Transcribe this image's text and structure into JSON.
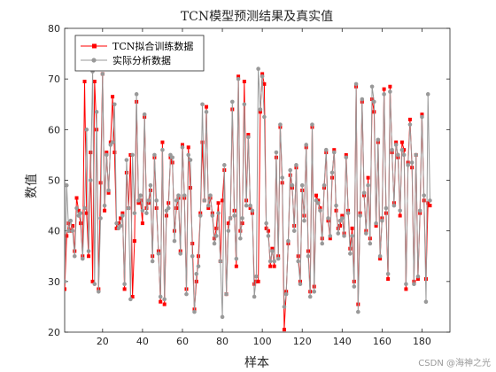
{
  "chart_data": {
    "type": "line",
    "title": "TCN模型预测结果及真实值",
    "xlabel": "样本",
    "ylabel": "数值",
    "xlim": [
      1,
      194
    ],
    "ylim": [
      20,
      80
    ],
    "xticks": [
      20,
      40,
      60,
      80,
      100,
      120,
      140,
      160,
      180
    ],
    "yticks": [
      20,
      30,
      40,
      50,
      60,
      70,
      80
    ],
    "grid": false,
    "legend_position": "top-left",
    "series": [
      {
        "name": "TCN拟合训练数据",
        "color": "#ff0000",
        "marker": "square",
        "values": [
          28.5,
          39.0,
          41.5,
          40.0,
          41.0,
          36.0,
          46.5,
          44.0,
          41.5,
          35.0,
          69.5,
          43.5,
          35.0,
          55.5,
          30.0,
          69.5,
          60.0,
          28.5,
          49.5,
          71.0,
          44.0,
          55.5,
          47.5,
          57.5,
          66.5,
          55.5,
          40.5,
          41.5,
          42.5,
          43.5,
          28.5,
          51.5,
          44.5,
          55.0,
          27.0,
          38.0,
          65.5,
          45.5,
          46.0,
          41.5,
          62.5,
          44.5,
          45.5,
          48.0,
          35.0,
          54.5,
          44.5,
          36.0,
          26.0,
          57.5,
          25.5,
          43.0,
          45.5,
          54.5,
          53.5,
          40.0,
          44.5,
          46.5,
          36.0,
          57.0,
          46.5,
          28.5,
          56.5,
          48.5,
          37.5,
          24.5,
          30.0,
          35.0,
          43.5,
          57.5,
          46.0,
          64.5,
          44.5,
          46.5,
          43.5,
          38.5,
          40.5,
          45.5,
          34.0,
          46.0,
          52.0,
          27.5,
          41.5,
          42.5,
          64.0,
          44.0,
          33.0,
          70.5,
          40.0,
          41.5,
          69.5,
          46.0,
          59.0,
          44.5,
          43.5,
          29.5,
          30.0,
          30.0,
          63.5,
          71.0,
          69.0,
          40.5,
          40.0,
          33.0,
          36.5,
          33.0,
          54.5,
          35.0,
          60.5,
          49.5,
          20.5,
          28.0,
          37.5,
          51.0,
          48.5,
          41.0,
          52.5,
          35.0,
          30.0,
          48.0,
          43.0,
          56.5,
          36.0,
          28.0,
          60.5,
          29.0,
          47.0,
          46.0,
          44.5,
          38.5,
          48.5,
          55.5,
          42.0,
          38.5,
          50.5,
          56.0,
          44.0,
          40.5,
          41.0,
          43.0,
          39.5,
          55.0,
          44.0,
          36.5,
          40.5,
          30.0,
          68.5,
          25.5,
          43.5,
          65.5,
          47.0,
          40.0,
          50.5,
          38.5,
          66.0,
          63.5,
          41.0,
          57.5,
          34.5,
          42.5,
          68.0,
          43.5,
          30.5,
          68.5,
          55.5,
          45.5,
          57.5,
          54.5,
          43.0,
          57.5,
          56.0,
          28.5,
          53.5,
          62.0,
          52.5,
          30.0,
          55.0,
          30.5,
          43.5,
          63.0,
          46.0,
          30.5,
          45.5,
          45.0
        ],
        "x_start": 1
      },
      {
        "name": "实际分析数据",
        "color": "#999999",
        "marker": "circle",
        "values": [
          30.0,
          49.0,
          40.0,
          42.0,
          40.0,
          35.0,
          44.5,
          43.0,
          43.5,
          34.5,
          44.5,
          60.0,
          36.0,
          50.0,
          71.5,
          29.5,
          63.5,
          28.0,
          42.5,
          71.0,
          45.0,
          55.0,
          48.0,
          57.0,
          57.5,
          65.0,
          41.5,
          40.5,
          41.0,
          43.0,
          29.5,
          54.0,
          44.5,
          26.5,
          55.0,
          43.5,
          67.0,
          46.0,
          47.0,
          44.0,
          63.0,
          43.5,
          46.0,
          49.0,
          34.0,
          55.0,
          46.0,
          35.5,
          27.0,
          56.0,
          26.5,
          44.0,
          44.5,
          55.0,
          54.5,
          38.0,
          46.0,
          47.0,
          35.5,
          56.5,
          47.0,
          27.5,
          55.0,
          54.0,
          35.0,
          24.0,
          31.5,
          33.0,
          43.0,
          65.0,
          46.0,
          63.5,
          45.0,
          47.0,
          43.0,
          37.5,
          39.0,
          43.5,
          34.0,
          23.0,
          53.0,
          27.5,
          40.0,
          42.5,
          65.5,
          43.0,
          34.5,
          70.0,
          38.5,
          42.5,
          65.0,
          45.0,
          58.5,
          45.0,
          44.0,
          27.0,
          31.0,
          72.0,
          64.0,
          70.5,
          62.5,
          41.5,
          39.0,
          34.0,
          36.0,
          34.0,
          55.5,
          34.5,
          61.0,
          50.5,
          25.0,
          27.5,
          38.0,
          52.0,
          49.0,
          40.0,
          53.0,
          34.0,
          29.5,
          49.0,
          42.0,
          57.0,
          35.0,
          27.0,
          61.0,
          28.0,
          46.0,
          45.5,
          44.0,
          37.5,
          49.0,
          56.0,
          42.5,
          39.0,
          51.5,
          55.5,
          45.0,
          39.5,
          42.0,
          42.5,
          39.0,
          54.5,
          43.5,
          35.5,
          39.0,
          29.0,
          69.0,
          24.0,
          43.0,
          66.0,
          47.5,
          39.5,
          49.0,
          37.5,
          68.5,
          65.5,
          41.5,
          58.0,
          35.0,
          42.0,
          67.0,
          44.5,
          31.5,
          67.5,
          56.0,
          45.0,
          57.0,
          55.0,
          44.0,
          56.0,
          55.0,
          29.5,
          53.0,
          61.0,
          53.5,
          29.5,
          55.0,
          31.0,
          44.0,
          62.5,
          47.0,
          26.0,
          67.0,
          46.0
        ],
        "x_start": 1
      }
    ]
  },
  "watermark": "CSDN @海神之光"
}
